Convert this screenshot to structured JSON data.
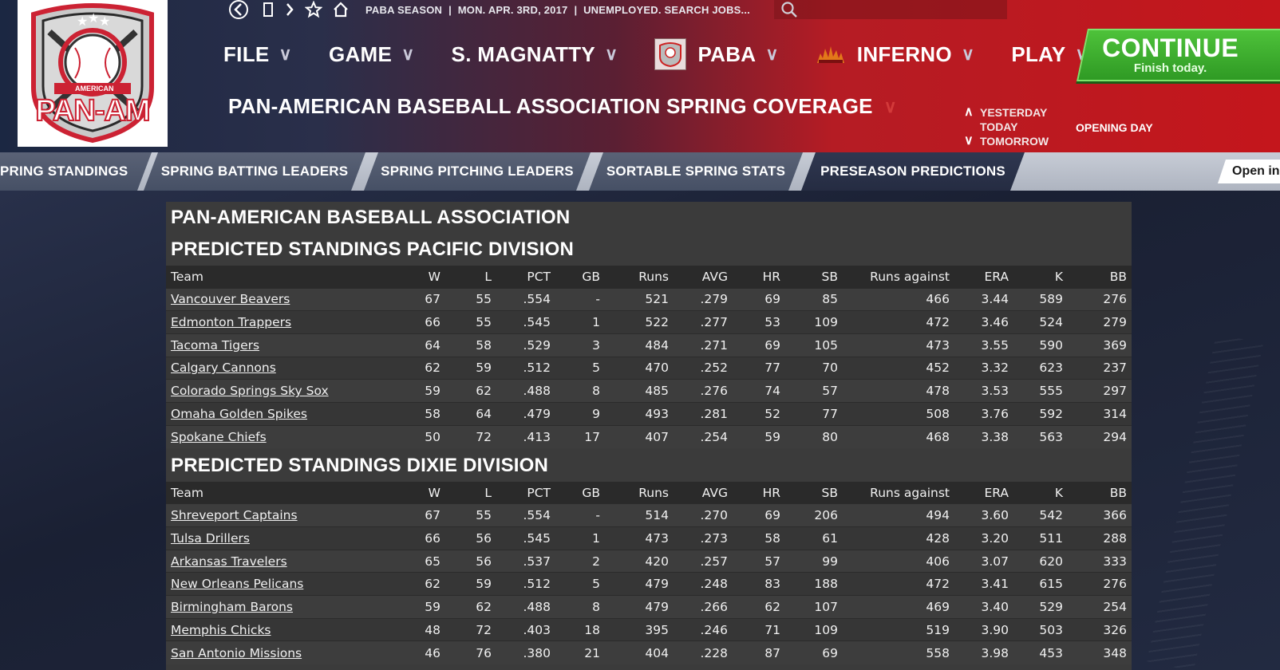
{
  "topbar": {
    "league": "PABA SEASON",
    "date": "MON. APR. 3RD, 2017",
    "status": "UNEMPLOYED. SEARCH JOBS..."
  },
  "logo": {
    "text": "PAN-AM",
    "ribbon": "AMERICAN"
  },
  "menu": [
    {
      "label": "FILE",
      "icon": null
    },
    {
      "label": "GAME",
      "icon": null
    },
    {
      "label": "S. MAGNATTY",
      "icon": null
    },
    {
      "label": "PABA",
      "icon": "paba-logo-icon"
    },
    {
      "label": "INFERNO",
      "icon": "inferno-logo-icon"
    },
    {
      "label": "PLAY",
      "icon": null
    }
  ],
  "continue": {
    "label": "CONTINUE",
    "sub": "Finish today."
  },
  "page_title": "PAN-AMERICAN BASEBALL ASSOCIATION SPRING COVERAGE",
  "date_nav": {
    "yesterday": "YESTERDAY",
    "today": "TODAY",
    "tomorrow": "TOMORROW",
    "day_label": "OPENING DAY"
  },
  "tabs": [
    "PRING STANDINGS",
    "SPRING BATTING LEADERS",
    "SPRING PITCHING LEADERS",
    "SORTABLE SPRING STATS",
    "PRESEASON PREDICTIONS"
  ],
  "open_button": "Open in",
  "report": {
    "association": "PAN-AMERICAN BASEBALL ASSOCIATION",
    "columns": [
      "Team",
      "W",
      "L",
      "PCT",
      "GB",
      "Runs",
      "AVG",
      "HR",
      "SB",
      "Runs against",
      "ERA",
      "K",
      "BB"
    ],
    "divisions": [
      {
        "title": "PREDICTED STANDINGS PACIFIC DIVISION",
        "rows": [
          [
            "Vancouver Beavers",
            "67",
            "55",
            ".554",
            "-",
            "521",
            ".279",
            "69",
            "85",
            "466",
            "3.44",
            "589",
            "276"
          ],
          [
            "Edmonton Trappers",
            "66",
            "55",
            ".545",
            "1",
            "522",
            ".277",
            "53",
            "109",
            "472",
            "3.46",
            "524",
            "279"
          ],
          [
            "Tacoma Tigers",
            "64",
            "58",
            ".529",
            "3",
            "484",
            ".271",
            "69",
            "105",
            "473",
            "3.55",
            "590",
            "369"
          ],
          [
            "Calgary Cannons",
            "62",
            "59",
            ".512",
            "5",
            "470",
            ".252",
            "77",
            "70",
            "452",
            "3.32",
            "623",
            "237"
          ],
          [
            "Colorado Springs Sky Sox",
            "59",
            "62",
            ".488",
            "8",
            "485",
            ".276",
            "74",
            "57",
            "478",
            "3.53",
            "555",
            "297"
          ],
          [
            "Omaha Golden Spikes",
            "58",
            "64",
            ".479",
            "9",
            "493",
            ".281",
            "52",
            "77",
            "508",
            "3.76",
            "592",
            "314"
          ],
          [
            "Spokane Chiefs",
            "50",
            "72",
            ".413",
            "17",
            "407",
            ".254",
            "59",
            "80",
            "468",
            "3.38",
            "563",
            "294"
          ]
        ]
      },
      {
        "title": "PREDICTED STANDINGS DIXIE DIVISION",
        "rows": [
          [
            "Shreveport Captains",
            "67",
            "55",
            ".554",
            "-",
            "514",
            ".270",
            "69",
            "206",
            "494",
            "3.60",
            "542",
            "366"
          ],
          [
            "Tulsa Drillers",
            "66",
            "56",
            ".545",
            "1",
            "473",
            ".273",
            "58",
            "61",
            "428",
            "3.20",
            "511",
            "288"
          ],
          [
            "Arkansas Travelers",
            "65",
            "56",
            ".537",
            "2",
            "420",
            ".257",
            "57",
            "99",
            "406",
            "3.07",
            "620",
            "333"
          ],
          [
            "New Orleans Pelicans",
            "62",
            "59",
            ".512",
            "5",
            "479",
            ".248",
            "83",
            "188",
            "472",
            "3.41",
            "615",
            "276"
          ],
          [
            "Birmingham Barons",
            "59",
            "62",
            ".488",
            "8",
            "479",
            ".266",
            "62",
            "107",
            "469",
            "3.40",
            "529",
            "254"
          ],
          [
            "Memphis Chicks",
            "48",
            "72",
            ".403",
            "18",
            "395",
            ".246",
            "71",
            "109",
            "519",
            "3.90",
            "503",
            "326"
          ],
          [
            "San Antonio Missions",
            "46",
            "76",
            ".380",
            "21",
            "404",
            ".228",
            "87",
            "69",
            "558",
            "3.98",
            "453",
            "348"
          ]
        ]
      }
    ]
  },
  "colors": {
    "continue_green": "#3fae2e",
    "header_red": "#c4161c",
    "header_navy": "#1b2742"
  }
}
